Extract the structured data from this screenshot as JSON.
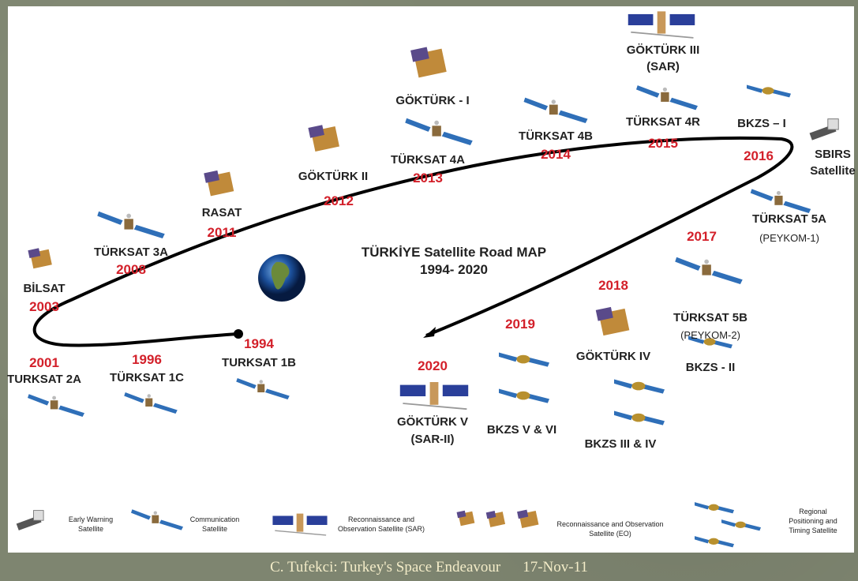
{
  "title": "TÜRKİYE Satellite Road MAP",
  "subtitle": "1994- 2020",
  "milestones": [
    {
      "year": "1994",
      "name": "TURKSAT 1B",
      "icon": "communication-satellite"
    },
    {
      "year": "1996",
      "name": "TÜRKSAT 1C",
      "icon": "communication-satellite"
    },
    {
      "year": "2001",
      "name": "TURKSAT 2A",
      "icon": "communication-satellite"
    },
    {
      "year": "2003",
      "name": "BİLSAT",
      "icon": "eo-satellite"
    },
    {
      "year": "2008",
      "name": "TÜRKSAT 3A",
      "icon": "communication-satellite"
    },
    {
      "year": "2011",
      "name": "RASAT",
      "icon": "eo-satellite"
    },
    {
      "year": "2012",
      "name": "GÖKTÜRK II",
      "icon": "eo-satellite"
    },
    {
      "year": "2013",
      "name": "TÜRKSAT 4A",
      "name2": "GÖKTÜRK - I",
      "icon": "communication-satellite"
    },
    {
      "year": "2014",
      "name": "TÜRKSAT 4B",
      "icon": "communication-satellite"
    },
    {
      "year": "2015",
      "name": "TÜRKSAT 4R",
      "name2": "GÖKTÜRK III",
      "name2_sub": "(SAR)",
      "icon": "sar-satellite"
    },
    {
      "year": "2016",
      "name": "BKZS – I",
      "name2": "SBIRS",
      "name2_sub": "Satellite",
      "icon": "early-warning-satellite"
    },
    {
      "year": "2017",
      "name": "TÜRKSAT 5A",
      "sub": "(PEYKOM-1)",
      "name2": "TÜRKSAT 5B",
      "name2_sub": "(PEYKOM-2)",
      "name3": "BKZS - II"
    },
    {
      "year": "2018",
      "name": "GÖKTÜRK IV",
      "name2": "BKZS III & IV"
    },
    {
      "year": "2019",
      "name": "BKZS V & VI"
    },
    {
      "year": "2020",
      "name": "GÖKTÜRK V",
      "sub": "(SAR-II)"
    }
  ],
  "legend": [
    {
      "label1": "Early Warning",
      "label2": "Satellite",
      "icon": "early-warning-satellite"
    },
    {
      "label1": "Communication",
      "label2": "Satellite",
      "icon": "communication-satellite"
    },
    {
      "label1": "Reconnaissance and",
      "label2": "Observation Satellite (SAR)",
      "icon": "sar-satellite"
    },
    {
      "label1": "Reconnaissance and Observation",
      "label2": "Satellite (EO)",
      "icon": "eo-satellite"
    },
    {
      "label1": "Regional",
      "label2": "Positioning and",
      "label3": "Timing Satellite",
      "icon": "navigation-satellite"
    }
  ],
  "footer": {
    "text": "C. Tufekci: Turkey's Space Endeavour",
    "date": "17-Nov-11"
  },
  "colors": {
    "year": "#d3202a",
    "background": "#7e8570",
    "panel": "#ffffff",
    "footer": "#f3ecc8"
  }
}
